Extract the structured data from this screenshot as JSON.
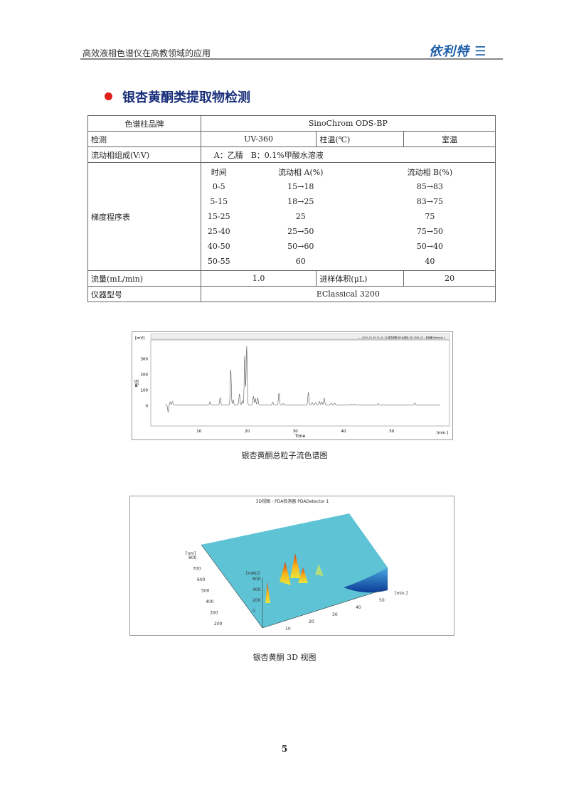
{
  "header": {
    "text": "高效液相色谱仪在高教领域的应用",
    "logo": "依利特"
  },
  "section": {
    "title": "银杏黄酮类提取物检测",
    "bullet_color": "#e0201a"
  },
  "table": {
    "column_brand_label": "色谱柱品牌",
    "column_brand_value": "SinoChrom ODS-BP",
    "detect_label": "检测",
    "detect_value": "UV-360",
    "temp_label": "柱温(℃)",
    "temp_value": "室温",
    "mobile_label": "流动相组成(V:V)",
    "mobile_value": "A：乙腈　B：0.1%甲酸水溶液",
    "gradient_label": "梯度程序表",
    "gradient_headers": [
      "时间",
      "流动相 A(%)",
      "流动相 B(%)"
    ],
    "gradient_rows": [
      [
        "0-5",
        "15→18",
        "85→83"
      ],
      [
        "5-15",
        "18→25",
        "83→75"
      ],
      [
        "15-25",
        "25",
        "75"
      ],
      [
        "25-40",
        "25→50",
        "75→50"
      ],
      [
        "40-50",
        "50→60",
        "50→40"
      ],
      [
        "50-55",
        "60",
        "40"
      ]
    ],
    "flow_label": "流量(mL/min)",
    "flow_value": "1.0",
    "inj_label": "进样体积(μL)",
    "inj_value": "20",
    "instrument_label": "仪器型号",
    "instrument_value": "EClassical 3200"
  },
  "chart_data": [
    {
      "type": "line",
      "ylabel": "电压",
      "yunit": "[mV]",
      "xlabel": "Time",
      "xunit": "[min.]",
      "legend": "— _2015_10_29 13_41_25-银杏黄酮-BP-反相柱-0113001_01 · 检测器 Detector 1",
      "legend_position": "top-right",
      "xlim": [
        0,
        62
      ],
      "ylim": [
        -130,
        420
      ],
      "xticks": [
        10,
        20,
        30,
        40,
        50
      ],
      "yticks": [
        0,
        100,
        200,
        300
      ],
      "baseline": 5,
      "peaks": [
        [
          3.6,
          -45
        ],
        [
          4.0,
          18
        ],
        [
          4.5,
          22
        ],
        [
          12.3,
          20
        ],
        [
          14.4,
          45
        ],
        [
          16.6,
          225
        ],
        [
          17.1,
          30
        ],
        [
          18.4,
          70
        ],
        [
          19.0,
          25
        ],
        [
          19.5,
          315
        ],
        [
          19.9,
          375
        ],
        [
          21.3,
          55
        ],
        [
          21.7,
          40
        ],
        [
          22.2,
          45
        ],
        [
          25.3,
          18
        ],
        [
          26.6,
          75
        ],
        [
          27.5,
          8
        ],
        [
          32.7,
          80
        ],
        [
          33.5,
          15
        ],
        [
          34.2,
          15
        ],
        [
          35.0,
          22
        ],
        [
          35.5,
          18
        ],
        [
          36.0,
          42
        ],
        [
          37.5,
          12
        ],
        [
          38.2,
          10
        ],
        [
          41.5,
          4
        ],
        [
          42.2,
          5
        ],
        [
          47.2,
          8
        ],
        [
          54.8,
          12
        ]
      ]
    },
    {
      "type": "surface-3d",
      "title": "3D视图 - PDA检测器 PDADetector 1",
      "wavelength_unit": "[nm]",
      "wavelength_ticks": [
        200,
        300,
        400,
        500,
        600,
        700,
        800
      ],
      "intensity_unit": "[mAU]",
      "intensity_ticks": [
        0,
        200,
        400,
        600
      ],
      "time_unit": "[min.]",
      "time_ticks": [
        10,
        20,
        30,
        40,
        50
      ]
    }
  ],
  "captions": {
    "chromatogram": "银杏黄酮总粒子流色谱图",
    "view3d": "银杏黄酮 3D 视图"
  },
  "page_number": "5"
}
